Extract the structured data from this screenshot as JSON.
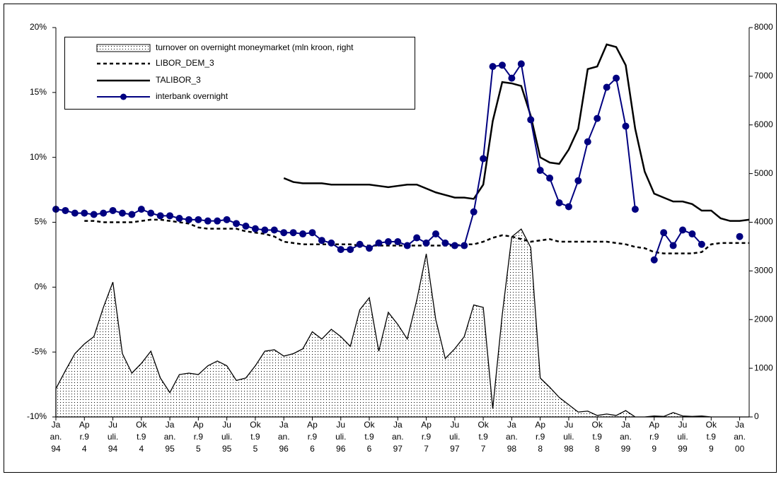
{
  "chart_data": {
    "type": "line",
    "categories": [
      [
        "Ja",
        "an.",
        "94"
      ],
      null,
      null,
      [
        "Ap",
        "r.9",
        "4"
      ],
      null,
      null,
      [
        "Ju",
        "uli.",
        "94"
      ],
      null,
      null,
      [
        "Ok",
        "t.9",
        "4"
      ],
      null,
      null,
      [
        "Ja",
        "an.",
        "95"
      ],
      null,
      null,
      [
        "Ap",
        "r.9",
        "5"
      ],
      null,
      null,
      [
        "Ju",
        "uli.",
        "95"
      ],
      null,
      null,
      [
        "Ok",
        "t.9",
        "5"
      ],
      null,
      null,
      [
        "Ja",
        "an.",
        "96"
      ],
      null,
      null,
      [
        "Ap",
        "r.9",
        "6"
      ],
      null,
      null,
      [
        "Ju",
        "uli.",
        "96"
      ],
      null,
      null,
      [
        "Ok",
        "t.9",
        "6"
      ],
      null,
      null,
      [
        "Ja",
        "an.",
        "97"
      ],
      null,
      null,
      [
        "Ap",
        "r.9",
        "7"
      ],
      null,
      null,
      [
        "Ju",
        "uli.",
        "97"
      ],
      null,
      null,
      [
        "Ok",
        "t.9",
        "7"
      ],
      null,
      null,
      [
        "Ja",
        "an.",
        "98"
      ],
      null,
      null,
      [
        "Ap",
        "r.9",
        "8"
      ],
      null,
      null,
      [
        "Ju",
        "uli.",
        "98"
      ],
      null,
      null,
      [
        "Ok",
        "t.9",
        "8"
      ],
      null,
      null,
      [
        "Ja",
        "an.",
        "99"
      ],
      null,
      null,
      [
        "Ap",
        "r.9",
        "9"
      ],
      null,
      null,
      [
        "Ju",
        "uli.",
        "99"
      ],
      null,
      null,
      [
        "Ok",
        "t.9",
        "9"
      ],
      null,
      null,
      [
        "Ja",
        "an.",
        "00"
      ],
      null
    ],
    "series": [
      {
        "name": "turnover on overnight moneymarket (mln kroon, right",
        "style": "area",
        "color": "#000000",
        "axis": "y2",
        "values": [
          580,
          950,
          1300,
          1500,
          1650,
          2250,
          2770,
          1300,
          900,
          1100,
          1350,
          800,
          500,
          870,
          900,
          870,
          1050,
          1150,
          1050,
          750,
          800,
          1050,
          1350,
          1380,
          1250,
          1300,
          1400,
          1750,
          1600,
          1800,
          1650,
          1450,
          2200,
          2450,
          1350,
          2150,
          1900,
          1600,
          2400,
          3350,
          2000,
          1200,
          1400,
          1650,
          2300,
          2250,
          170,
          2100,
          3700,
          3860,
          3480,
          800,
          610,
          400,
          250,
          100,
          120,
          30,
          60,
          30,
          130,
          0,
          0,
          20,
          10,
          90,
          20,
          10,
          20,
          0,
          0,
          0,
          0,
          0
        ]
      },
      {
        "name": "LIBOR_DEM_3",
        "style": "dashed",
        "color": "#000000",
        "values": [
          null,
          null,
          null,
          5.1,
          5.1,
          5.0,
          5.0,
          5.0,
          5.0,
          5.1,
          5.2,
          5.2,
          5.1,
          5.0,
          4.9,
          4.6,
          4.5,
          4.5,
          4.5,
          4.5,
          4.3,
          4.2,
          4.1,
          3.9,
          3.5,
          3.4,
          3.3,
          3.3,
          3.3,
          3.3,
          3.3,
          3.3,
          3.2,
          3.2,
          3.2,
          3.2,
          3.2,
          3.2,
          3.2,
          3.2,
          3.2,
          3.2,
          3.2,
          3.3,
          3.3,
          3.5,
          3.8,
          4.0,
          3.9,
          3.7,
          3.5,
          3.6,
          3.7,
          3.5,
          3.5,
          3.5,
          3.5,
          3.5,
          3.5,
          3.4,
          3.3,
          3.1,
          3.0,
          2.7,
          2.6,
          2.6,
          2.6,
          2.6,
          2.7,
          3.3,
          3.4,
          3.4,
          3.4,
          3.4
        ]
      },
      {
        "name": "TALIBOR_3",
        "style": "line",
        "color": "#000000",
        "values": [
          null,
          null,
          null,
          null,
          null,
          null,
          null,
          null,
          null,
          null,
          null,
          null,
          null,
          null,
          null,
          null,
          null,
          null,
          null,
          null,
          null,
          null,
          null,
          null,
          8.4,
          8.1,
          8.0,
          8.0,
          8.0,
          7.9,
          7.9,
          7.9,
          7.9,
          7.9,
          7.8,
          7.7,
          7.8,
          7.9,
          7.9,
          7.6,
          7.3,
          7.1,
          6.9,
          6.9,
          6.8,
          7.9,
          12.8,
          15.8,
          15.7,
          15.5,
          13.2,
          10.0,
          9.6,
          9.5,
          10.6,
          12.2,
          16.8,
          17.0,
          18.7,
          18.5,
          17.1,
          12.2,
          8.9,
          7.2,
          6.9,
          6.6,
          6.6,
          6.4,
          5.9,
          5.9,
          5.3,
          5.1,
          5.1,
          5.2
        ]
      },
      {
        "name": "interbank overnight",
        "style": "markers",
        "color": "#000080",
        "values": [
          6.0,
          5.9,
          5.7,
          5.7,
          5.6,
          5.7,
          5.9,
          5.7,
          5.6,
          6.0,
          5.7,
          5.5,
          5.5,
          5.3,
          5.2,
          5.2,
          5.1,
          5.1,
          5.2,
          4.9,
          4.7,
          4.5,
          4.4,
          4.4,
          4.2,
          4.2,
          4.1,
          4.2,
          3.6,
          3.4,
          2.9,
          2.9,
          3.3,
          3.0,
          3.4,
          3.5,
          3.5,
          3.2,
          3.8,
          3.4,
          4.1,
          3.4,
          3.2,
          3.2,
          5.8,
          9.9,
          17.0,
          17.1,
          16.1,
          17.2,
          12.9,
          9.0,
          8.4,
          6.5,
          6.2,
          8.2,
          11.2,
          13.0,
          15.4,
          16.1,
          12.4,
          6.0,
          null,
          2.1,
          4.2,
          3.2,
          4.4,
          4.1,
          3.3,
          null,
          null,
          null,
          3.9,
          null
        ]
      }
    ],
    "ylim": [
      -10,
      20
    ],
    "yticks": [
      {
        "value": -10,
        "label": "-10%"
      },
      {
        "value": -5,
        "label": "-5%"
      },
      {
        "value": 0,
        "label": "0%"
      },
      {
        "value": 5,
        "label": "5%"
      },
      {
        "value": 10,
        "label": "10%"
      },
      {
        "value": 15,
        "label": "15%"
      },
      {
        "value": 20,
        "label": "20%"
      }
    ],
    "y2lim": [
      0,
      8000
    ],
    "y2ticks": [
      0,
      1000,
      2000,
      3000,
      4000,
      5000,
      6000,
      7000,
      8000
    ],
    "grid": "vertical",
    "legend": "top-left"
  }
}
